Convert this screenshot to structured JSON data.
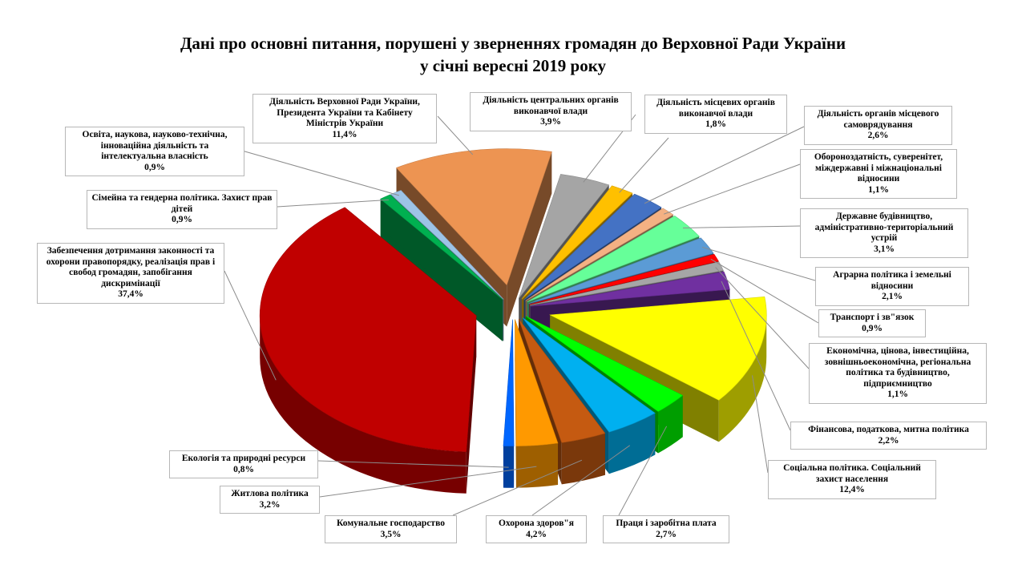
{
  "chart_data": {
    "type": "pie",
    "style": "3d-exploded",
    "title": "Дані про основні питання, порушені у зверненнях громадян до Верховної Ради України",
    "subtitle": "у січні  вересні 2019 року",
    "legend": "callouts",
    "slices": [
      {
        "label": "Діяльність центральних  органів виконавчої  влади",
        "value": 3.9,
        "value_label": "3,9%",
        "color": "#a5a5a5"
      },
      {
        "label": "Діяльність місцевих органів виконавчої влади",
        "value": 1.8,
        "value_label": "1,8%",
        "color": "#ffc000"
      },
      {
        "label": "Діяльність органів  місцевого самоврядування",
        "value": 2.6,
        "value_label": "2,6%",
        "color": "#4472c4"
      },
      {
        "label": "Обороноздатність,  суверенітет, міждержавні  і міжнаціональні відносини",
        "value": 1.1,
        "value_label": "1,1%",
        "color": "#f4b183"
      },
      {
        "label": "Державне будівництво, адміністративно-територіальний устрій",
        "value": 3.1,
        "value_label": "3,1%",
        "color": "#66ff99"
      },
      {
        "label": "Аграрна  політика  і земельні відносини",
        "value": 2.1,
        "value_label": "2,1%",
        "color": "#5b9bd5"
      },
      {
        "label": "Транспорт  і зв\"язок",
        "value": 0.9,
        "value_label": "0,9%",
        "color": "#ff0000"
      },
      {
        "label": "Економічна,  цінова, інвестиційна, зовнішньоекономічна,  регіональна політика  та будівництво, підприємництво",
        "value": 1.1,
        "value_label": "1,1%",
        "color": "#a6a6a6"
      },
      {
        "label": "Фінансова, податкова,  митна політика",
        "value": 2.2,
        "value_label": "2,2%",
        "color": "#7030a0"
      },
      {
        "label": "Соціальна  політика.  Соціальний захист  населення",
        "value": 12.4,
        "value_label": "12,4%",
        "color": "#ffff00"
      },
      {
        "label": "Праця  і заробітна  плата",
        "value": 2.7,
        "value_label": "2,7%",
        "color": "#00ff00"
      },
      {
        "label": "Охорона  здоров\"я",
        "value": 4.2,
        "value_label": "4,2%",
        "color": "#00b0f0"
      },
      {
        "label": "Комунальне  господарство",
        "value": 3.5,
        "value_label": "3,5%",
        "color": "#c55a11"
      },
      {
        "label": "Житлова  політика",
        "value": 3.2,
        "value_label": "3,2%",
        "color": "#ff9900"
      },
      {
        "label": "Екологія  та природні  ресурси",
        "value": 0.8,
        "value_label": "0,8%",
        "color": "#0066ff"
      },
      {
        "label": "Забезпечення  дотримання  законності та охорони  правопорядку,  реалізація прав  і свобод  громадян,  запобігання дискримінації",
        "value": 37.4,
        "value_label": "37,4%",
        "color": "#c00000"
      },
      {
        "label": "Сімейна  та гендерна  політика.  Захист прав  дітей",
        "value": 0.9,
        "value_label": "0,9%",
        "color": "#00b050"
      },
      {
        "label": "Освіта,  наукова,  науково-технічна, інноваційна  діяльність  та інтелектуальна  власність",
        "value": 0.9,
        "value_label": "0,9%",
        "color": "#9dc3e6"
      },
      {
        "label": "Діяльність  Верховної  Ради  України, Президента  України  та Кабінету Міністрів  України",
        "value": 11.4,
        "value_label": "11,4%",
        "color": "#ed9452"
      }
    ]
  }
}
